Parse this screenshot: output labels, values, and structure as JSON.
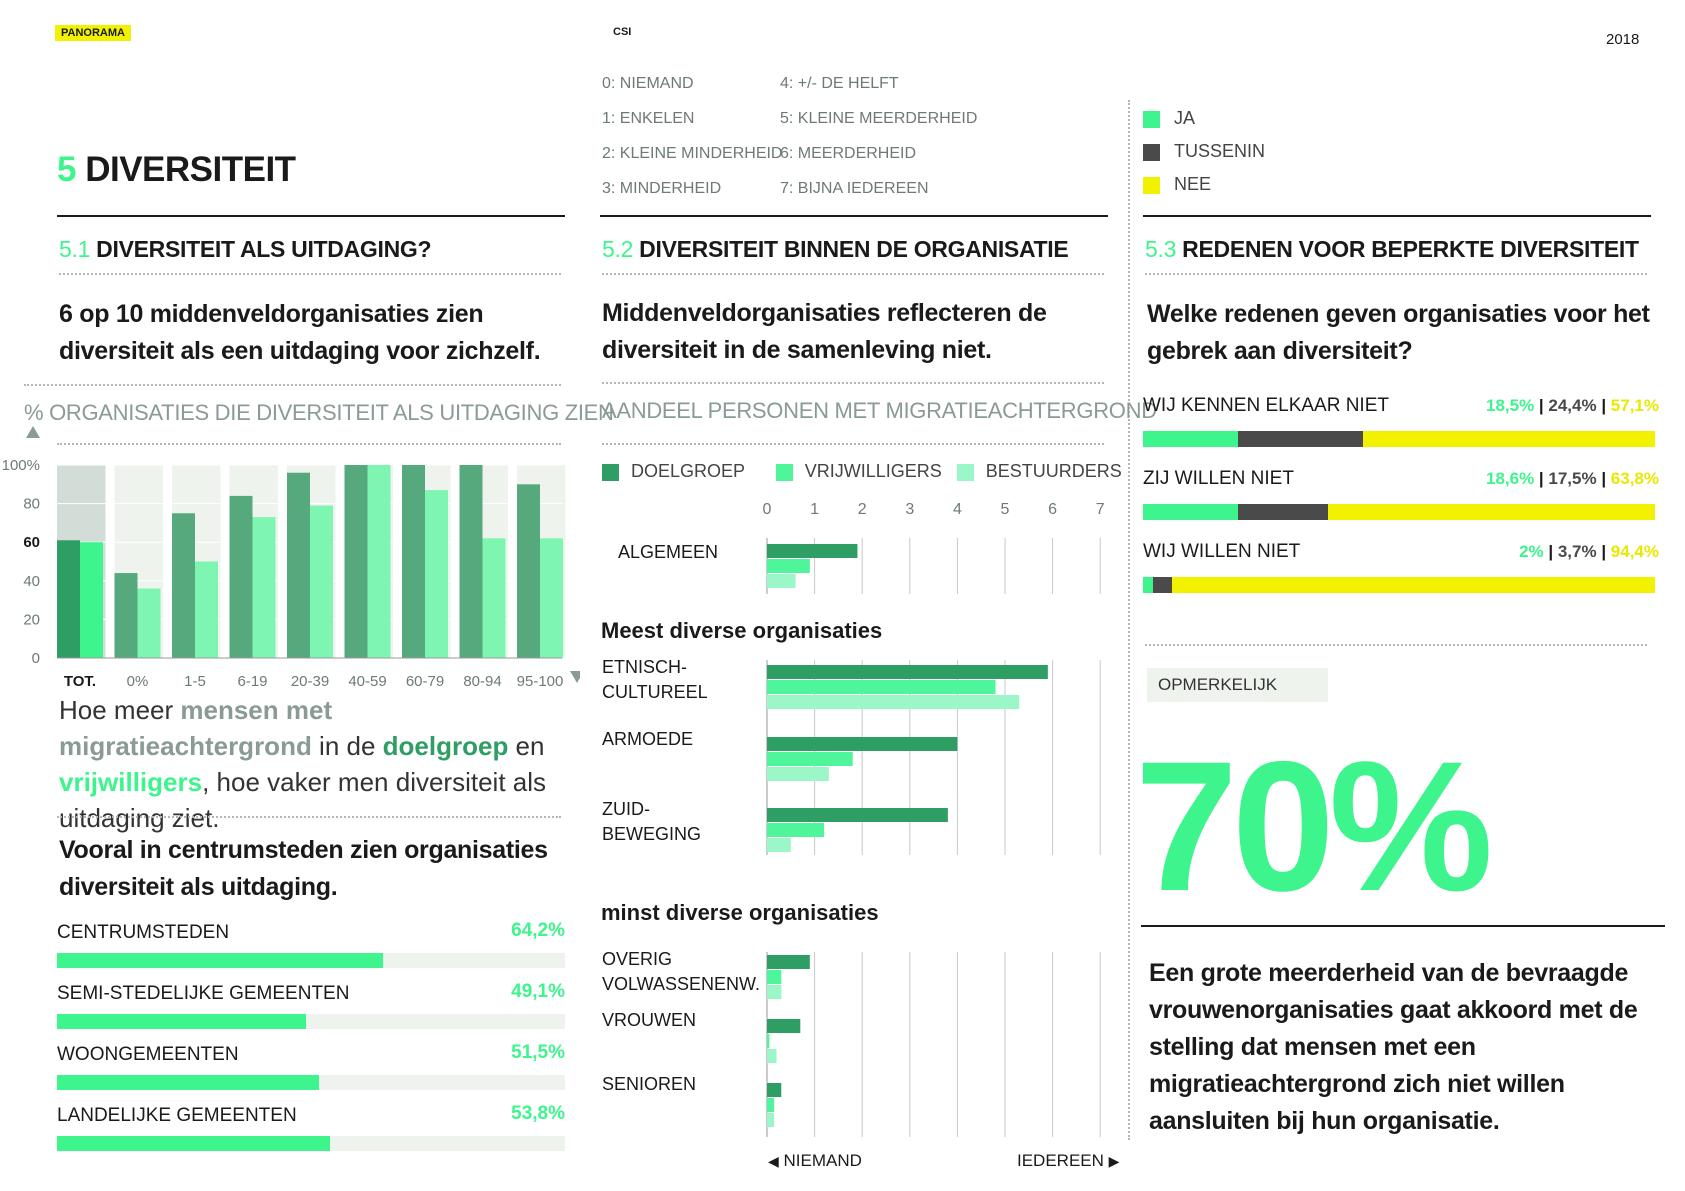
{
  "header": {
    "brand": "PANORAMA",
    "center": "CSI",
    "year": "2018"
  },
  "title": {
    "num": "5",
    "text": "DIVERSITEIT"
  },
  "scale_legend": [
    "0: NIEMAND",
    "1: ENKELEN",
    "2: KLEINE MINDERHEID",
    "3: MINDERHEID",
    "4: +/- DE HELFT",
    "5: KLEINE MEERDERHEID",
    "6: MEERDERHEID",
    "7: BIJNA IEDEREEN"
  ],
  "jtn_legend": {
    "ja": "JA",
    "tussenin": "TUSSENIN",
    "nee": "NEE"
  },
  "colors": {
    "accent": "#3df58c",
    "dark_green": "#2e9e64",
    "mid_green": "#4ff59a",
    "light_green": "#9cf7c8",
    "tussenin": "#4a4a4a",
    "nee": "#f2f200",
    "bg_band": "#eef3ee"
  },
  "s51": {
    "num": "5.1",
    "title": "DIVERSITEIT ALS UITDAGING?",
    "lead": "6 op 10 middenveldorganisaties zien diversiteit als een uitdaging voor zichzelf.",
    "chart_title": "% ORGANISATIES DIE DIVERSITEIT ALS UITDAGING ZIEN",
    "text_parts": {
      "a": "Hoe meer ",
      "b": "mensen met migratieachtergrond",
      "c": " in de ",
      "d": "doelgroep",
      "e": " en ",
      "f": "vrijwilligers",
      "g": ", hoe vaker men diversiteit als uitdaging ziet."
    },
    "lead2": "Vooral in centrumsteden zien organisaties diversiteit als uitdaging.",
    "bars": [
      {
        "label": "CENTRUMSTEDEN",
        "pct": "64,2%",
        "value": 64.2
      },
      {
        "label": "SEMI-STEDELIJKE GEMEENTEN",
        "pct": "49,1%",
        "value": 49.1
      },
      {
        "label": "WOONGEMEENTEN",
        "pct": "51,5%",
        "value": 51.5
      },
      {
        "label": "LANDELIJKE GEMEENTEN",
        "pct": "53,8%",
        "value": 53.8
      }
    ]
  },
  "s52": {
    "num": "5.2",
    "title": "DIVERSITEIT BINNEN DE ORGANISATIE",
    "lead": "Middenveldorganisaties reflecteren de diversiteit in de samenleving niet.",
    "chart_title": "AANDEEL PERSONEN MET MIGRATIEACHTERGROND",
    "legend": [
      "DOELGROEP",
      "VRIJWILLIGERS",
      "BESTUURDERS"
    ],
    "heading_most": "Meest diverse organisaties",
    "heading_least": "minst diverse organisaties",
    "axis_left": "NIEMAND",
    "axis_right": "IEDEREEN"
  },
  "s53": {
    "num": "5.3",
    "title": "REDENEN VOOR BEPERKTE DIVERSITEIT",
    "lead": "Welke redenen geven organisaties voor het gebrek aan diversiteit?",
    "rows": [
      {
        "label": "WIJ KENNEN ELKAAR NIET",
        "ja": "18,5%",
        "tussenin": "24,4%",
        "nee": "57,1%",
        "v": [
          18.5,
          24.4,
          57.1
        ]
      },
      {
        "label": "ZIJ WILLEN NIET",
        "ja": "18,6%",
        "tussenin": "17,5%",
        "nee": "63,8%",
        "v": [
          18.6,
          17.5,
          63.8
        ]
      },
      {
        "label": "WIJ WILLEN NIET",
        "ja": "2%",
        "tussenin": "3,7%",
        "nee": "94,4%",
        "v": [
          2,
          3.7,
          94.4
        ]
      }
    ],
    "opmerkelijk": "OPMERKELIJK",
    "big": "70%",
    "statement": "Een grote meerderheid van de bevraagde vrouwenorganisaties gaat akkoord met de stelling dat mensen met een migratieachtergrond zich niet willen aansluiten bij hun organisatie."
  },
  "chart_data": [
    {
      "type": "bar",
      "title": "% ORGANISATIES DIE DIVERSITEIT ALS UITDAGING ZIEN",
      "categories": [
        "TOT.",
        "0%",
        "1-5",
        "6-19",
        "20-39",
        "40-59",
        "60-79",
        "80-94",
        "95-100"
      ],
      "series": [
        {
          "name": "doelgroep",
          "values": [
            61,
            44,
            75,
            84,
            96,
            100,
            100,
            100,
            90
          ]
        },
        {
          "name": "vrijwilligers",
          "values": [
            60,
            36,
            50,
            73,
            79,
            100,
            87,
            62,
            62
          ]
        }
      ],
      "yticks": [
        "0",
        "20",
        "40",
        "60",
        "80",
        "100%"
      ],
      "ylim": [
        0,
        100
      ]
    },
    {
      "type": "bar",
      "orientation": "horizontal",
      "title": "AANDEEL PERSONEN MET MIGRATIEACHTERGROND",
      "xticks": [
        "0",
        "1",
        "2",
        "3",
        "4",
        "5",
        "6",
        "7"
      ],
      "xlim": [
        0,
        7
      ],
      "series_names": [
        "DOELGROEP",
        "VRIJWILLIGERS",
        "BESTUURDERS"
      ],
      "groups": [
        {
          "label": "ALGEMEEN",
          "values": [
            1.9,
            0.9,
            0.6
          ]
        },
        {
          "label": "ETNISCH-\nCULTUREEL",
          "values": [
            5.9,
            4.8,
            5.3
          ]
        },
        {
          "label": "ARMOEDE",
          "values": [
            4.0,
            1.8,
            1.3
          ]
        },
        {
          "label": "ZUID-\nBEWEGING",
          "values": [
            3.8,
            1.2,
            0.5
          ]
        },
        {
          "label": "OVERIG\nVOLWASSENENW.",
          "values": [
            0.9,
            0.3,
            0.3
          ]
        },
        {
          "label": "VROUWEN",
          "values": [
            0.7,
            0.05,
            0.2
          ]
        },
        {
          "label": "SENIOREN",
          "values": [
            0.3,
            0.15,
            0.15
          ]
        }
      ]
    }
  ]
}
